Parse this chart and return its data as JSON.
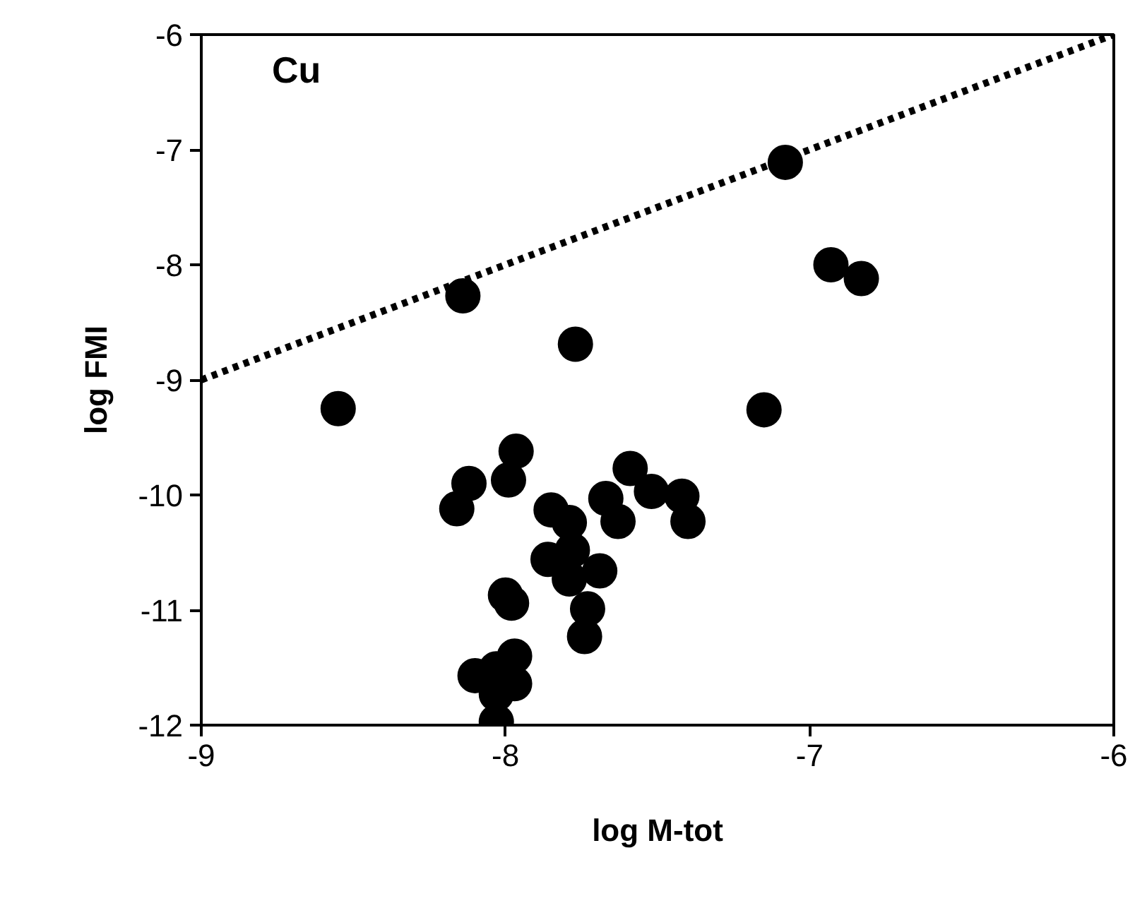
{
  "chart_data": {
    "type": "scatter",
    "xlabel": "log M-tot",
    "ylabel": "log FMI",
    "annotations": [
      "Cu"
    ],
    "xlim": [
      -9,
      -6
    ],
    "ylim": [
      -12,
      -6
    ],
    "xticks": [
      -9,
      -8,
      -7,
      -6
    ],
    "yticks": [
      -12,
      -11,
      -10,
      -9,
      -8,
      -7,
      -6
    ],
    "grid": false,
    "marker": "circle",
    "series": [
      {
        "color": "#000000",
        "x": [
          -8.55,
          -8.14,
          -7.77,
          -7.08,
          -6.93,
          -6.83,
          -7.15,
          -7.965,
          -7.99,
          -8.12,
          -8.16,
          -7.59,
          -7.52,
          -7.42,
          -7.4,
          -7.67,
          -7.63,
          -7.85,
          -7.79,
          -7.86,
          -7.78,
          -7.69,
          -7.79,
          -7.73,
          -7.74,
          -8.0,
          -7.98,
          -7.97,
          -8.1,
          -8.03,
          -7.97,
          -8.03,
          -8.03
        ],
        "values": [
          -9.25,
          -8.27,
          -8.69,
          -7.11,
          -8.0,
          -8.12,
          -9.26,
          -9.62,
          -9.87,
          -9.9,
          -10.12,
          -9.77,
          -9.97,
          -10.01,
          -10.23,
          -10.03,
          -10.23,
          -10.13,
          -10.24,
          -10.56,
          -10.48,
          -10.66,
          -10.73,
          -10.99,
          -11.23,
          -10.87,
          -10.94,
          -11.4,
          -11.57,
          -11.51,
          -11.64,
          -11.73,
          -11.97
        ]
      },
      {
        "type": "line",
        "color": "#000000",
        "line_style": "dotted",
        "marker": "none",
        "x": [
          -9,
          -6
        ],
        "values": [
          -9,
          -6
        ]
      }
    ]
  }
}
